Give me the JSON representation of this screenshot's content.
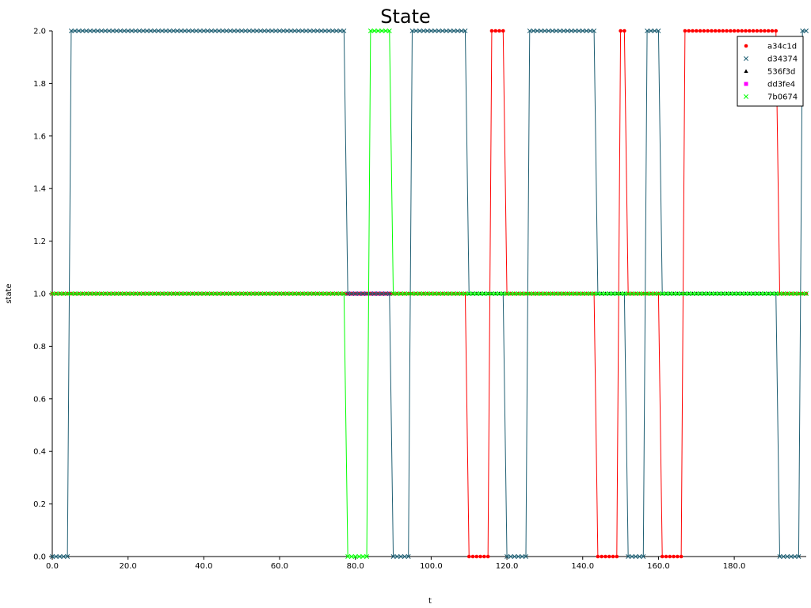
{
  "chart_data": {
    "type": "line",
    "title": "State",
    "xlabel": "t",
    "ylabel": "state",
    "xlim": [
      0,
      199
    ],
    "ylim": [
      0,
      2
    ],
    "xticks": [
      0,
      20,
      40,
      60,
      80,
      100,
      120,
      140,
      160,
      180
    ],
    "xtick_labels": [
      "0.0",
      "20.0",
      "40.0",
      "60.0",
      "80.0",
      "100.0",
      "120.0",
      "140.0",
      "160.0",
      "180.0"
    ],
    "yticks": [
      0,
      0.2,
      0.4,
      0.6,
      0.8,
      1.0,
      1.2,
      1.4,
      1.6,
      1.8,
      2.0
    ],
    "ytick_labels": [
      "0.0",
      "0.2",
      "0.4",
      "0.6",
      "0.8",
      "1.0",
      "1.2",
      "1.4",
      "1.6",
      "1.8",
      "2.0"
    ],
    "legend_position": "top-right",
    "series": [
      {
        "name": "a34c1d",
        "color": "#ff0000",
        "marker": "circle",
        "segments": [
          [
            0,
            1
          ],
          [
            110,
            0
          ],
          [
            116,
            2
          ],
          [
            120,
            1
          ],
          [
            144,
            0
          ],
          [
            150,
            2
          ],
          [
            152,
            1
          ],
          [
            161,
            0
          ],
          [
            167,
            2
          ],
          [
            192,
            1
          ],
          [
            199,
            1
          ]
        ]
      },
      {
        "name": "d34374",
        "color": "#1f5f73",
        "marker": "x",
        "segments": [
          [
            0,
            0
          ],
          [
            5,
            2
          ],
          [
            78,
            1
          ],
          [
            90,
            0
          ],
          [
            95,
            2
          ],
          [
            110,
            1
          ],
          [
            120,
            0
          ],
          [
            126,
            2
          ],
          [
            144,
            1
          ],
          [
            152,
            0
          ],
          [
            157,
            2
          ],
          [
            161,
            1
          ],
          [
            192,
            0
          ],
          [
            198,
            2
          ],
          [
            199,
            2
          ]
        ]
      },
      {
        "name": "536f3d",
        "color": "#000000",
        "marker": "triangle",
        "segments": [
          [
            0,
            1
          ],
          [
            199,
            1
          ]
        ]
      },
      {
        "name": "dd3fe4",
        "color": "#ff00ff",
        "marker": "square",
        "segments": [
          [
            0,
            1
          ],
          [
            78,
            1
          ],
          [
            89,
            1
          ],
          [
            90,
            1
          ],
          [
            199,
            1
          ]
        ],
        "highlight_range": [
          78,
          89
        ]
      },
      {
        "name": "7b0674",
        "color": "#00ff00",
        "marker": "x",
        "segments": [
          [
            0,
            1
          ],
          [
            78,
            0
          ],
          [
            84,
            2
          ],
          [
            90,
            1
          ],
          [
            199,
            1
          ]
        ]
      }
    ]
  }
}
